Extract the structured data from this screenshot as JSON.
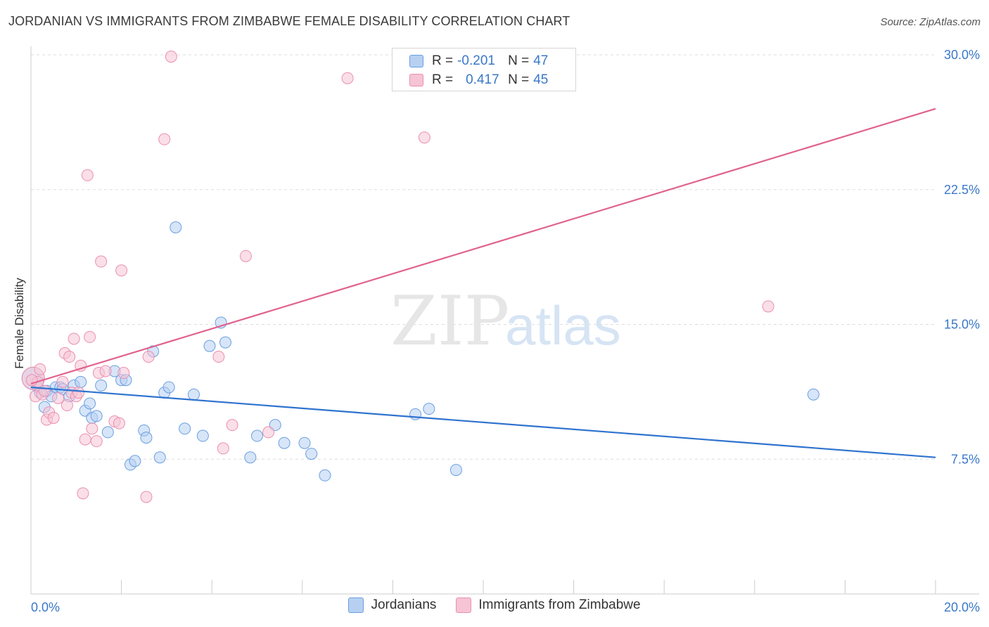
{
  "chart_data": {
    "type": "scatter",
    "title": "JORDANIAN VS IMMIGRANTS FROM ZIMBABWE FEMALE DISABILITY CORRELATION CHART",
    "source": "Source: ZipAtlas.com",
    "xlabel": "",
    "ylabel": "Female Disability",
    "xlim": [
      0,
      20
    ],
    "ylim": [
      0,
      30
    ],
    "x_tick_labels": [
      "0.0%",
      "20.0%"
    ],
    "y_ticks": [
      7.5,
      15.0,
      22.5,
      30.0
    ],
    "y_tick_labels": [
      "7.5%",
      "15.0%",
      "22.5%",
      "30.0%"
    ],
    "watermark": {
      "zip": "ZIP",
      "atlas": "atlas"
    },
    "series": [
      {
        "name": "Jordanians",
        "color": "#6b9fe0",
        "fill": "#b7d0f2",
        "line_color": "#2f73cf",
        "R": "-0.201",
        "N": "47",
        "trend": {
          "x": [
            0,
            20
          ],
          "y": [
            11.5,
            7.6
          ]
        },
        "points": [
          [
            0.05,
            12.0
          ],
          [
            0.15,
            11.5
          ],
          [
            0.2,
            11.2
          ],
          [
            0.3,
            10.4
          ],
          [
            0.35,
            11.3
          ],
          [
            0.45,
            11.0
          ],
          [
            0.55,
            11.5
          ],
          [
            0.65,
            11.5
          ],
          [
            0.7,
            11.4
          ],
          [
            0.85,
            11.0
          ],
          [
            0.95,
            11.6
          ],
          [
            1.1,
            11.8
          ],
          [
            1.2,
            10.2
          ],
          [
            1.3,
            10.6
          ],
          [
            1.35,
            9.8
          ],
          [
            1.45,
            9.9
          ],
          [
            1.55,
            11.6
          ],
          [
            1.7,
            9.0
          ],
          [
            1.85,
            12.4
          ],
          [
            2.0,
            11.9
          ],
          [
            2.1,
            11.9
          ],
          [
            2.2,
            7.2
          ],
          [
            2.3,
            7.4
          ],
          [
            2.5,
            9.1
          ],
          [
            2.55,
            8.7
          ],
          [
            2.7,
            13.5
          ],
          [
            2.85,
            7.6
          ],
          [
            2.95,
            11.2
          ],
          [
            3.05,
            11.5
          ],
          [
            3.2,
            20.4
          ],
          [
            3.4,
            9.2
          ],
          [
            3.6,
            11.1
          ],
          [
            3.8,
            8.8
          ],
          [
            3.95,
            13.8
          ],
          [
            4.2,
            15.1
          ],
          [
            4.3,
            14.0
          ],
          [
            4.85,
            7.6
          ],
          [
            5.0,
            8.8
          ],
          [
            5.4,
            9.4
          ],
          [
            5.6,
            8.4
          ],
          [
            6.05,
            8.4
          ],
          [
            6.2,
            7.8
          ],
          [
            6.5,
            6.6
          ],
          [
            8.5,
            10.0
          ],
          [
            8.8,
            10.3
          ],
          [
            9.4,
            6.9
          ],
          [
            17.3,
            11.1
          ]
        ]
      },
      {
        "name": "Immigrants from Zimbabwe",
        "color": "#eb8fb0",
        "fill": "#f6c4d5",
        "line_color": "#e0628f",
        "R": "0.417",
        "N": "45",
        "trend": {
          "x": [
            0,
            20
          ],
          "y": [
            11.7,
            27.0
          ]
        },
        "points": [
          [
            0.05,
            12.0
          ],
          [
            0.1,
            11.0
          ],
          [
            0.15,
            11.8
          ],
          [
            0.2,
            12.5
          ],
          [
            0.25,
            11.1
          ],
          [
            0.3,
            11.3
          ],
          [
            0.35,
            9.7
          ],
          [
            0.4,
            10.1
          ],
          [
            0.5,
            9.8
          ],
          [
            0.6,
            10.9
          ],
          [
            0.7,
            11.8
          ],
          [
            0.75,
            13.4
          ],
          [
            0.8,
            10.5
          ],
          [
            0.85,
            13.2
          ],
          [
            0.9,
            11.2
          ],
          [
            0.95,
            14.2
          ],
          [
            1.0,
            11.0
          ],
          [
            1.05,
            11.2
          ],
          [
            1.1,
            12.7
          ],
          [
            1.15,
            5.6
          ],
          [
            1.2,
            8.6
          ],
          [
            1.25,
            23.3
          ],
          [
            1.3,
            14.3
          ],
          [
            1.35,
            9.2
          ],
          [
            1.45,
            8.5
          ],
          [
            1.5,
            12.3
          ],
          [
            1.55,
            18.5
          ],
          [
            1.65,
            12.4
          ],
          [
            1.85,
            9.6
          ],
          [
            1.95,
            9.5
          ],
          [
            2.0,
            18.0
          ],
          [
            2.05,
            12.3
          ],
          [
            2.55,
            5.4
          ],
          [
            2.6,
            13.2
          ],
          [
            2.95,
            25.3
          ],
          [
            3.1,
            29.9
          ],
          [
            4.15,
            13.2
          ],
          [
            4.25,
            8.1
          ],
          [
            4.45,
            9.4
          ],
          [
            4.75,
            18.8
          ],
          [
            5.25,
            9.0
          ],
          [
            7.0,
            28.7
          ],
          [
            8.7,
            25.4
          ],
          [
            16.3,
            16.0
          ],
          [
            0.02,
            11.9
          ]
        ]
      }
    ],
    "legend_position": "bottom"
  },
  "legend_top": {
    "r_label": "R =",
    "n_label": "N ="
  }
}
